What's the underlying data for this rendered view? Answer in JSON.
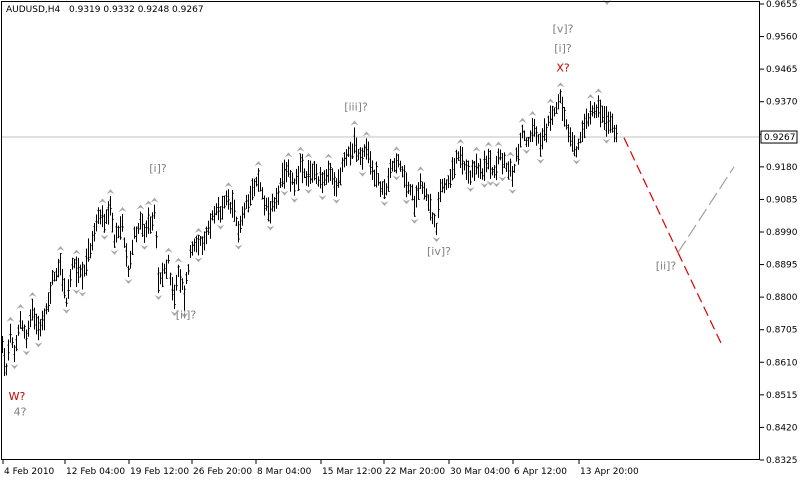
{
  "header": {
    "symbol_timeframe": "AUDUSD,H4",
    "ohlc": "0.9319 0.9332 0.9248 0.9267"
  },
  "colors": {
    "background": "#ffffff",
    "frame": "#000000",
    "bars": "#000000",
    "fractals": "#a8a8a8",
    "price_line": "#c0c0c0",
    "label_gray": "#808080",
    "label_red": "#cc0000",
    "forecast_red": "#dd0000",
    "forecast_gray": "#a0a0a0"
  },
  "chart_data": {
    "type": "ohlc",
    "symbol": "AUDUSD",
    "timeframe": "H4",
    "x_ticks": [
      "4 Feb 2010",
      "12 Feb 04:00",
      "19 Feb 12:00",
      "26 Feb 20:00",
      "8 Mar 04:00",
      "15 Mar 12:00",
      "22 Mar 20:00",
      "30 Mar 04:00",
      "6 Apr 12:00",
      "13 Apr 20:00"
    ],
    "y_ticks": [
      "0.9655",
      "0.9560",
      "0.9465",
      "0.9370",
      "0.9275",
      "0.9180",
      "0.9085",
      "0.8990",
      "0.8895",
      "0.8800",
      "0.8705",
      "0.8610",
      "0.8515",
      "0.8420",
      "0.8325"
    ],
    "ylim": [
      0.8325,
      0.9655
    ],
    "current_price": "0.9267",
    "price_path": [
      {
        "t": 0,
        "p": 0.866
      },
      {
        "t": 4,
        "p": 0.858
      },
      {
        "t": 8,
        "p": 0.87
      },
      {
        "t": 12,
        "p": 0.862
      },
      {
        "t": 18,
        "p": 0.874
      },
      {
        "t": 24,
        "p": 0.868
      },
      {
        "t": 30,
        "p": 0.876
      },
      {
        "t": 36,
        "p": 0.872
      },
      {
        "t": 42,
        "p": 0.873
      },
      {
        "t": 50,
        "p": 0.885
      },
      {
        "t": 58,
        "p": 0.89
      },
      {
        "t": 64,
        "p": 0.878
      },
      {
        "t": 70,
        "p": 0.889
      },
      {
        "t": 80,
        "p": 0.887
      },
      {
        "t": 90,
        "p": 0.896
      },
      {
        "t": 97,
        "p": 0.905
      },
      {
        "t": 102,
        "p": 0.901
      },
      {
        "t": 108,
        "p": 0.905
      },
      {
        "t": 112,
        "p": 0.897
      },
      {
        "t": 120,
        "p": 0.901
      },
      {
        "t": 126,
        "p": 0.889
      },
      {
        "t": 132,
        "p": 0.898
      },
      {
        "t": 138,
        "p": 0.902
      },
      {
        "t": 143,
        "p": 0.898
      },
      {
        "t": 148,
        "p": 0.902
      },
      {
        "t": 153,
        "p": 0.904
      },
      {
        "t": 156,
        "p": 0.884
      },
      {
        "t": 160,
        "p": 0.886
      },
      {
        "t": 166,
        "p": 0.89
      },
      {
        "t": 172,
        "p": 0.88
      },
      {
        "t": 176,
        "p": 0.887
      },
      {
        "t": 182,
        "p": 0.881
      },
      {
        "t": 188,
        "p": 0.893
      },
      {
        "t": 194,
        "p": 0.897
      },
      {
        "t": 200,
        "p": 0.894
      },
      {
        "t": 206,
        "p": 0.9
      },
      {
        "t": 212,
        "p": 0.905
      },
      {
        "t": 218,
        "p": 0.904
      },
      {
        "t": 224,
        "p": 0.908
      },
      {
        "t": 230,
        "p": 0.906
      },
      {
        "t": 236,
        "p": 0.9
      },
      {
        "t": 242,
        "p": 0.905
      },
      {
        "t": 248,
        "p": 0.911
      },
      {
        "t": 256,
        "p": 0.914
      },
      {
        "t": 262,
        "p": 0.908
      },
      {
        "t": 268,
        "p": 0.905
      },
      {
        "t": 274,
        "p": 0.909
      },
      {
        "t": 280,
        "p": 0.914
      },
      {
        "t": 286,
        "p": 0.917
      },
      {
        "t": 292,
        "p": 0.913
      },
      {
        "t": 298,
        "p": 0.918
      },
      {
        "t": 304,
        "p": 0.914
      },
      {
        "t": 310,
        "p": 0.917
      },
      {
        "t": 316,
        "p": 0.915
      },
      {
        "t": 322,
        "p": 0.914
      },
      {
        "t": 328,
        "p": 0.916
      },
      {
        "t": 334,
        "p": 0.912
      },
      {
        "t": 340,
        "p": 0.918
      },
      {
        "t": 346,
        "p": 0.922
      },
      {
        "t": 352,
        "p": 0.925
      },
      {
        "t": 358,
        "p": 0.92
      },
      {
        "t": 364,
        "p": 0.923
      },
      {
        "t": 370,
        "p": 0.917
      },
      {
        "t": 376,
        "p": 0.914
      },
      {
        "t": 382,
        "p": 0.91
      },
      {
        "t": 388,
        "p": 0.918
      },
      {
        "t": 394,
        "p": 0.92
      },
      {
        "t": 400,
        "p": 0.916
      },
      {
        "t": 406,
        "p": 0.912
      },
      {
        "t": 412,
        "p": 0.908
      },
      {
        "t": 418,
        "p": 0.914
      },
      {
        "t": 424,
        "p": 0.91
      },
      {
        "t": 430,
        "p": 0.904
      },
      {
        "t": 434,
        "p": 0.899
      },
      {
        "t": 438,
        "p": 0.912
      },
      {
        "t": 444,
        "p": 0.913
      },
      {
        "t": 450,
        "p": 0.917
      },
      {
        "t": 456,
        "p": 0.921
      },
      {
        "t": 462,
        "p": 0.918
      },
      {
        "t": 468,
        "p": 0.914
      },
      {
        "t": 474,
        "p": 0.919
      },
      {
        "t": 480,
        "p": 0.916
      },
      {
        "t": 486,
        "p": 0.92
      },
      {
        "t": 492,
        "p": 0.917
      },
      {
        "t": 498,
        "p": 0.921
      },
      {
        "t": 504,
        "p": 0.918
      },
      {
        "t": 510,
        "p": 0.916
      },
      {
        "t": 515,
        "p": 0.922
      },
      {
        "t": 520,
        "p": 0.928
      },
      {
        "t": 526,
        "p": 0.925
      },
      {
        "t": 532,
        "p": 0.929
      },
      {
        "t": 538,
        "p": 0.924
      },
      {
        "t": 544,
        "p": 0.929
      },
      {
        "t": 550,
        "p": 0.933
      },
      {
        "t": 555,
        "p": 0.937
      },
      {
        "t": 558,
        "p": 0.939
      },
      {
        "t": 562,
        "p": 0.931
      },
      {
        "t": 568,
        "p": 0.926
      },
      {
        "t": 574,
        "p": 0.922
      },
      {
        "t": 580,
        "p": 0.929
      },
      {
        "t": 586,
        "p": 0.933
      },
      {
        "t": 592,
        "p": 0.936
      },
      {
        "t": 598,
        "p": 0.934
      },
      {
        "t": 604,
        "p": 0.931
      },
      {
        "t": 610,
        "p": 0.93
      },
      {
        "t": 614,
        "p": 0.927
      }
    ],
    "forecast": {
      "down_leg": [
        [
          622,
          0.9265
        ],
        [
          676,
          0.893
        ]
      ],
      "up_leg": [
        [
          676,
          0.893
        ],
        [
          732,
          0.918
        ]
      ],
      "final_leg": [
        [
          676,
          0.893
        ],
        [
          720,
          0.866
        ]
      ]
    },
    "labels": [
      {
        "id": "w",
        "text": "W?",
        "t": 15,
        "p": 0.85,
        "color": "red"
      },
      {
        "id": "four",
        "text": "4?",
        "t": 18,
        "p": 0.8455,
        "color": "gray"
      },
      {
        "id": "i",
        "text": "[i]?",
        "t": 156,
        "p": 0.9165,
        "color": "gray"
      },
      {
        "id": "ii",
        "text": "[ii]?",
        "t": 184,
        "p": 0.8737,
        "color": "gray"
      },
      {
        "id": "iii",
        "text": "[iii]?",
        "t": 354,
        "p": 0.9345,
        "color": "gray"
      },
      {
        "id": "iv",
        "text": "[iv]?",
        "t": 437,
        "p": 0.8923,
        "color": "gray"
      },
      {
        "id": "v",
        "text": "[v]?",
        "t": 561,
        "p": 0.9572,
        "color": "gray"
      },
      {
        "id": "i2",
        "text": "[i]?",
        "t": 561,
        "p": 0.9515,
        "color": "gray"
      },
      {
        "id": "x",
        "text": "X?",
        "t": 561,
        "p": 0.9458,
        "color": "red"
      },
      {
        "id": "ii2",
        "text": "[ii]?",
        "t": 664,
        "p": 0.888,
        "color": "gray"
      }
    ]
  }
}
